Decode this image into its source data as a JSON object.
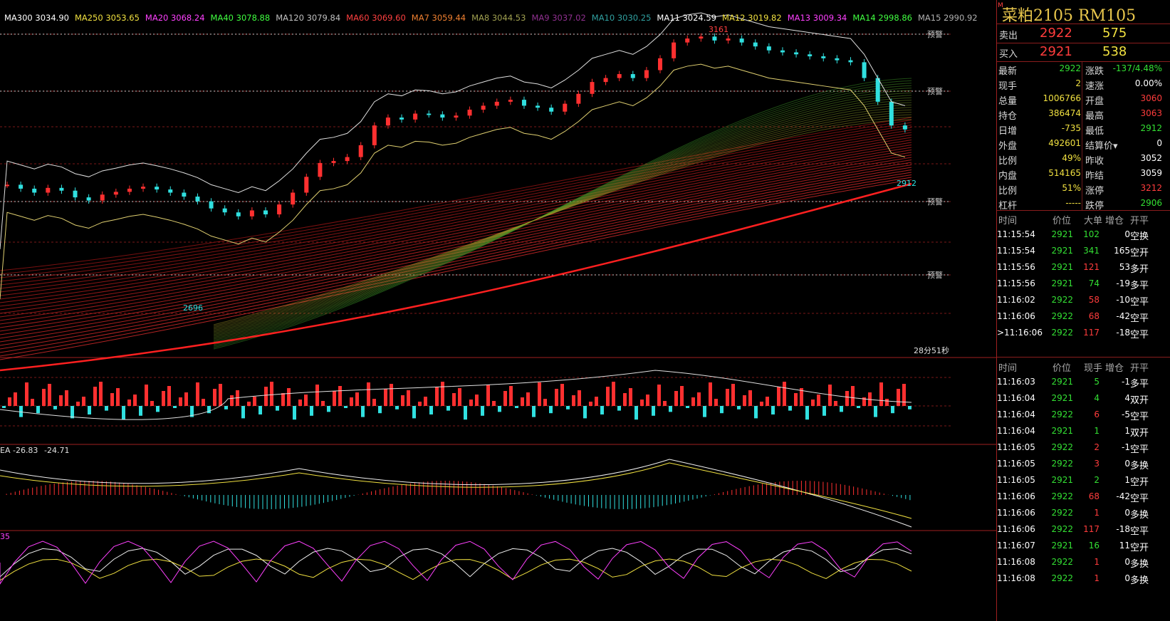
{
  "ma_legend": [
    {
      "label": "MA300 3034.90",
      "color": "#ffffff"
    },
    {
      "label": "MA250 3053.65",
      "color": "#f0e040"
    },
    {
      "label": "MA20 3068.24",
      "color": "#ff40ff"
    },
    {
      "label": "MA40 3078.88",
      "color": "#40ff40"
    },
    {
      "label": "MA120 3079.84",
      "color": "#c0c0c0"
    },
    {
      "label": "MA60 3069.60",
      "color": "#ff4040"
    },
    {
      "label": "MA7 3059.44",
      "color": "#f08030"
    },
    {
      "label": "MA8 3044.53",
      "color": "#a0a050"
    },
    {
      "label": "MA9 3037.02",
      "color": "#903090"
    },
    {
      "label": "MA10 3030.25",
      "color": "#30a0a0"
    },
    {
      "label": "MA11 3024.59",
      "color": "#ffffff"
    },
    {
      "label": "MA12 3019.82",
      "color": "#f0e040"
    },
    {
      "label": "MA13 3009.34",
      "color": "#ff40ff"
    },
    {
      "label": "MA14 2998.86",
      "color": "#40ff40"
    },
    {
      "label": "MA15 2990.92",
      "color": "#b0b0b0"
    }
  ],
  "chart": {
    "warning_label": "预警",
    "high_label": "3161",
    "low_label": "2696",
    "last_low_label": "2912",
    "countdown": "28分51秒",
    "macd_label": "EA -26.83",
    "macd_value": "-24.71",
    "kdj_label": "35"
  },
  "symbol": {
    "mark": "M",
    "title": "菜粕2105 RM105"
  },
  "orderbook": {
    "sell": {
      "label": "卖出",
      "price": "2922",
      "vol": "575"
    },
    "buy": {
      "label": "买入",
      "price": "2921",
      "vol": "538"
    }
  },
  "quote": [
    {
      "l": "最新",
      "v": "2922",
      "vc": "grn",
      "l2": "涨跌",
      "v2": "-137/4.48%",
      "v2c": "grn"
    },
    {
      "l": "现手",
      "v": "2",
      "vc": "yel",
      "l2": "速涨",
      "v2": "0.00%",
      "v2c": "wht"
    },
    {
      "l": "总量",
      "v": "1006766",
      "vc": "yel",
      "l2": "开盘",
      "v2": "3060",
      "v2c": "red"
    },
    {
      "l": "持仓",
      "v": "386474",
      "vc": "yel",
      "l2": "最高",
      "v2": "3063",
      "v2c": "red"
    },
    {
      "l": "日增",
      "v": "-735",
      "vc": "yel",
      "l2": "最低",
      "v2": "2912",
      "v2c": "grn"
    },
    {
      "l": "外盘",
      "v": "492601",
      "vc": "yel",
      "l2": "结算价▾",
      "v2": "0",
      "v2c": "wht"
    },
    {
      "l": "比例",
      "v": "49%",
      "vc": "yel",
      "l2": "昨收",
      "v2": "3052",
      "v2c": "wht"
    },
    {
      "l": "内盘",
      "v": "514165",
      "vc": "yel",
      "l2": "昨结",
      "v2": "3059",
      "v2c": "wht"
    },
    {
      "l": "比例",
      "v": "51%",
      "vc": "yel",
      "l2": "涨停",
      "v2": "3212",
      "v2c": "red"
    },
    {
      "l": "杠杆",
      "v": "-----",
      "vc": "yel",
      "l2": "跌停",
      "v2": "2906",
      "v2c": "grn"
    }
  ],
  "big_header": {
    "time": "时间",
    "price": "价位",
    "vol": "大单",
    "oi": "增仓",
    "type": "开平"
  },
  "big_trades": [
    {
      "time": "11:15:54",
      "price": "2921",
      "vol": "102",
      "vc": "grn",
      "oi": "0",
      "type": "空换"
    },
    {
      "time": "11:15:54",
      "price": "2921",
      "vol": "341",
      "vc": "grn",
      "oi": "165",
      "type": "空开"
    },
    {
      "time": "11:15:56",
      "price": "2921",
      "vol": "121",
      "vc": "red",
      "oi": "53",
      "type": "多开"
    },
    {
      "time": "11:15:56",
      "price": "2921",
      "vol": "74",
      "vc": "grn",
      "oi": "-19",
      "type": "多平"
    },
    {
      "time": "11:16:02",
      "price": "2922",
      "vol": "58",
      "vc": "red",
      "oi": "-10",
      "type": "空平"
    },
    {
      "time": "11:16:06",
      "price": "2922",
      "vol": "68",
      "vc": "red",
      "oi": "-42",
      "type": "空平"
    },
    {
      "time": ">11:16:06",
      "price": "2922",
      "vol": "117",
      "vc": "red",
      "oi": "-18",
      "type": "空平"
    }
  ],
  "tick_header": {
    "time": "时间",
    "price": "价位",
    "vol": "现手",
    "oi": "增仓",
    "type": "开平"
  },
  "ticks": [
    {
      "time": "11:16:03",
      "price": "2921",
      "vol": "5",
      "vc": "grn",
      "oi": "-1",
      "type": "多平"
    },
    {
      "time": "11:16:04",
      "price": "2921",
      "vol": "4",
      "vc": "grn",
      "oi": "4",
      "type": "双开"
    },
    {
      "time": "11:16:04",
      "price": "2922",
      "vol": "6",
      "vc": "red",
      "oi": "-5",
      "type": "空平"
    },
    {
      "time": "11:16:04",
      "price": "2921",
      "vol": "1",
      "vc": "grn",
      "oi": "1",
      "type": "双开"
    },
    {
      "time": "11:16:05",
      "price": "2922",
      "vol": "2",
      "vc": "red",
      "oi": "-1",
      "type": "空平"
    },
    {
      "time": "11:16:05",
      "price": "2922",
      "vol": "3",
      "vc": "red",
      "oi": "0",
      "type": "多换"
    },
    {
      "time": "11:16:05",
      "price": "2921",
      "vol": "2",
      "vc": "grn",
      "oi": "1",
      "type": "空开"
    },
    {
      "time": "11:16:06",
      "price": "2922",
      "vol": "68",
      "vc": "red",
      "oi": "-42",
      "type": "空平"
    },
    {
      "time": "11:16:06",
      "price": "2922",
      "vol": "1",
      "vc": "red",
      "oi": "0",
      "type": "多换"
    },
    {
      "time": "11:16:06",
      "price": "2922",
      "vol": "117",
      "vc": "red",
      "oi": "-18",
      "type": "空平"
    },
    {
      "time": "11:16:07",
      "price": "2921",
      "vol": "16",
      "vc": "grn",
      "oi": "11",
      "type": "空开"
    },
    {
      "time": "11:16:08",
      "price": "2922",
      "vol": "1",
      "vc": "red",
      "oi": "0",
      "type": "多换"
    },
    {
      "time": "11:16:08",
      "price": "2922",
      "vol": "1",
      "vc": "red",
      "oi": "0",
      "type": "多换"
    }
  ]
}
